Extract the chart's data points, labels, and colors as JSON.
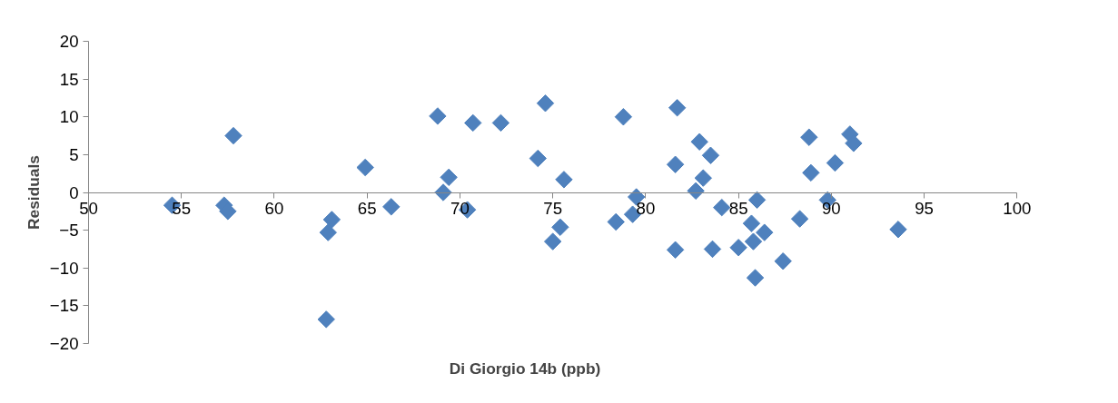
{
  "chart_data": {
    "type": "scatter",
    "xlabel": "Di Giorgio 14b (ppb)",
    "ylabel": "Residuals",
    "xlim": [
      50,
      100
    ],
    "xticks": [
      50,
      55,
      60,
      65,
      70,
      75,
      80,
      85,
      90,
      95,
      100
    ],
    "ylim": [
      -20,
      20
    ],
    "yticks": [
      -20,
      -15,
      -10,
      -5,
      0,
      5,
      10,
      15,
      20
    ],
    "grid": false,
    "marker": "diamond",
    "series": [
      {
        "color": "#4f81bd",
        "x": [
          54.5,
          57.3,
          57.5,
          57.8,
          64.9,
          66.3,
          63.1,
          62.9,
          62.8,
          68.8,
          69.1,
          69.4,
          70.4,
          70.7,
          72.2,
          74.2,
          74.6,
          75.6,
          75.4,
          75.0,
          78.4,
          78.8,
          79.3,
          79.5,
          81.6,
          81.7,
          81.6,
          82.9,
          82.7,
          83.1,
          83.5,
          83.6,
          84.1,
          85.0,
          85.7,
          85.8,
          86.0,
          86.4,
          85.9,
          87.4,
          88.3,
          88.8,
          88.9,
          89.8,
          90.2,
          91.0,
          91.2,
          93.6
        ],
        "values": [
          -1.7,
          -1.7,
          -2.5,
          7.5,
          3.3,
          -1.9,
          -3.6,
          -5.3,
          -16.8,
          10.1,
          0.0,
          2.0,
          -2.3,
          9.2,
          9.2,
          4.5,
          11.8,
          1.7,
          -4.6,
          -6.5,
          -3.9,
          10.0,
          -2.9,
          -0.6,
          3.7,
          11.2,
          -7.6,
          6.7,
          0.2,
          1.9,
          4.9,
          -7.5,
          -2.0,
          -7.3,
          -4.1,
          -6.5,
          -1.0,
          -5.3,
          -11.3,
          -9.1,
          -3.5,
          7.3,
          2.6,
          -1.0,
          3.9,
          7.7,
          6.5,
          -4.9
        ]
      }
    ]
  }
}
